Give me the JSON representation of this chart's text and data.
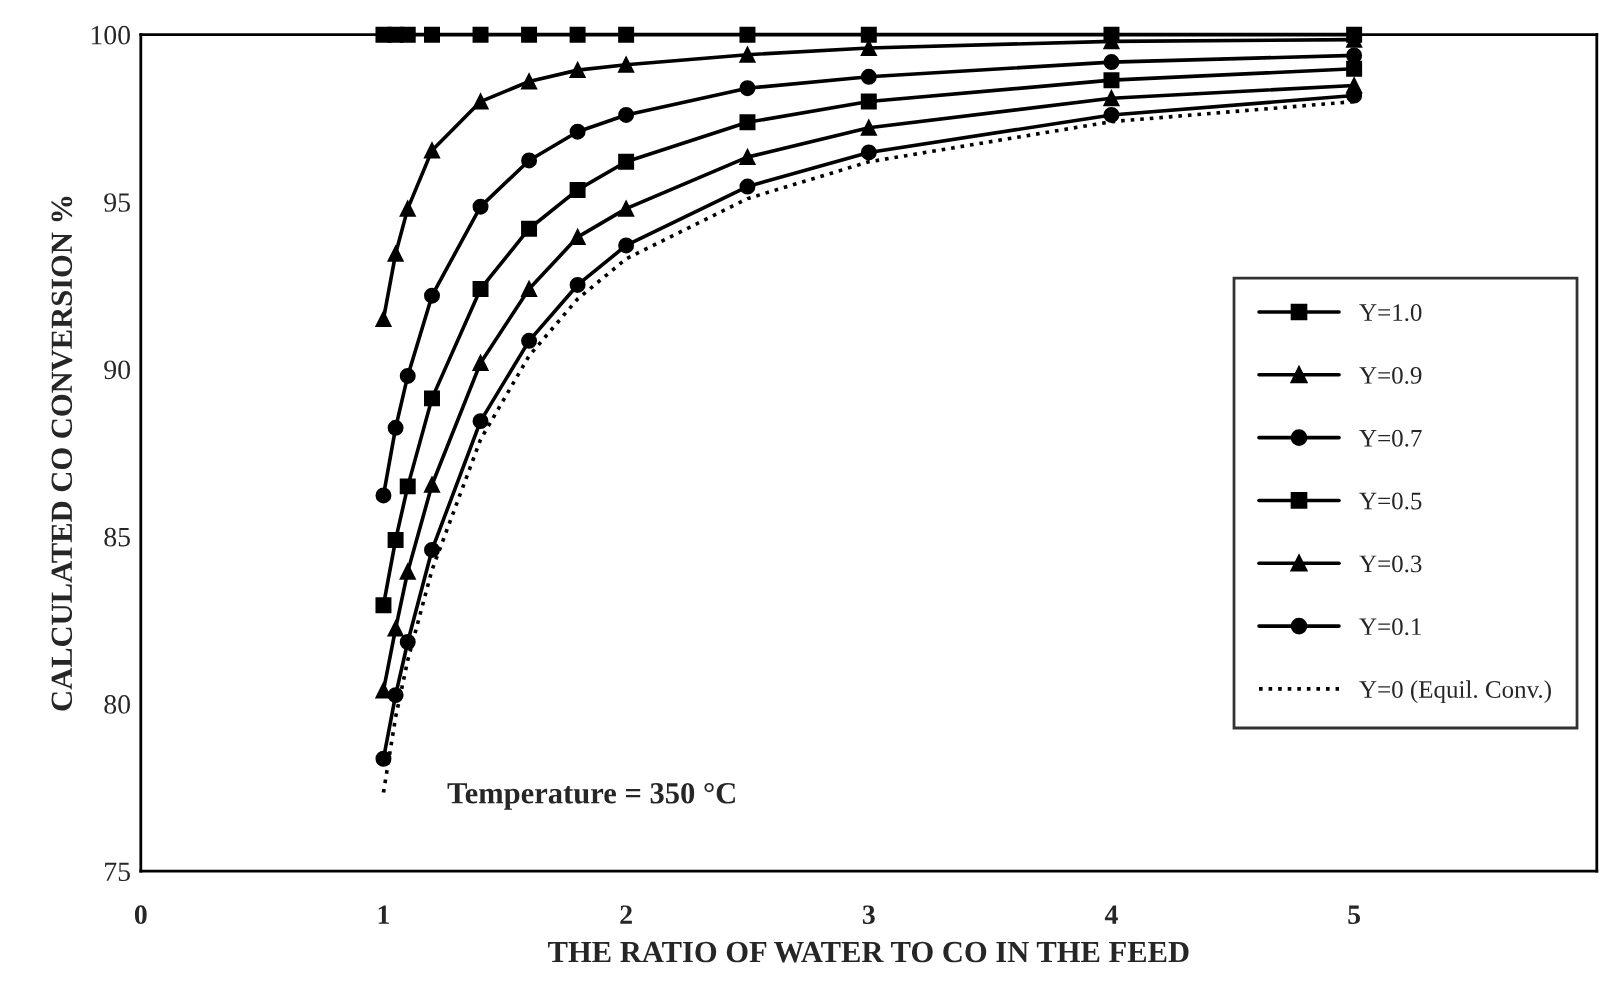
{
  "chart_data": {
    "type": "line",
    "xlabel": "THE RATIO OF WATER TO CO IN THE FEED",
    "ylabel": "CALCULATED CO CONVERSION %",
    "x": [
      1.0,
      1.05,
      1.1,
      1.2,
      1.4,
      1.6,
      1.8,
      2.0,
      2.5,
      3.0,
      4.0,
      5.0
    ],
    "series": [
      {
        "name": "Y=1.0",
        "color": "#000000",
        "marker": "square",
        "line_style": "solid",
        "values": [
          100,
          100,
          100,
          100,
          100,
          100,
          100,
          100,
          100,
          100,
          100,
          100
        ]
      },
      {
        "name": "Y=0.9",
        "color": "#000000",
        "marker": "triangle",
        "line_style": "solid",
        "values": [
          91.5,
          93.45,
          94.8,
          96.54,
          98.0,
          98.6,
          98.94,
          99.1,
          99.4,
          99.6,
          99.8,
          99.85
        ]
      },
      {
        "name": "Y=0.7",
        "color": "#000000",
        "marker": "circle",
        "line_style": "solid",
        "values": [
          86.23,
          88.25,
          89.8,
          92.2,
          94.86,
          96.24,
          97.1,
          97.6,
          98.4,
          98.74,
          99.18,
          99.38
        ]
      },
      {
        "name": "Y=0.5",
        "color": "#000000",
        "marker": "square",
        "line_style": "solid",
        "values": [
          82.95,
          84.9,
          86.5,
          89.13,
          92.4,
          94.2,
          95.36,
          96.2,
          97.38,
          98.0,
          98.64,
          98.98
        ]
      },
      {
        "name": "Y=0.3",
        "color": "#000000",
        "marker": "triangle",
        "line_style": "solid",
        "values": [
          80.4,
          82.25,
          83.95,
          86.55,
          90.19,
          92.4,
          93.95,
          94.8,
          96.34,
          97.22,
          98.1,
          98.48
        ]
      },
      {
        "name": "Y=0.1",
        "color": "#000000",
        "marker": "circle",
        "line_style": "solid",
        "values": [
          78.36,
          80.26,
          81.85,
          84.6,
          88.45,
          90.85,
          92.52,
          93.7,
          95.46,
          96.48,
          97.6,
          98.18
        ]
      },
      {
        "name": "Y=0 (Equil. Conv.)",
        "color": "#000000",
        "marker": "none",
        "line_style": "dotted",
        "values": [
          77.35,
          79.6,
          81.3,
          84.0,
          87.9,
          90.4,
          92.1,
          93.3,
          95.1,
          96.2,
          97.4,
          98.0
        ]
      }
    ],
    "xlim": [
      0,
      6
    ],
    "xticks": [
      0,
      1,
      2,
      3,
      4,
      5
    ],
    "ylim": [
      75,
      100
    ],
    "yticks": [
      75,
      80,
      85,
      90,
      95,
      100
    ],
    "grid": false,
    "legend": "right",
    "annotations": [
      "Temperature = 350 °C"
    ]
  }
}
